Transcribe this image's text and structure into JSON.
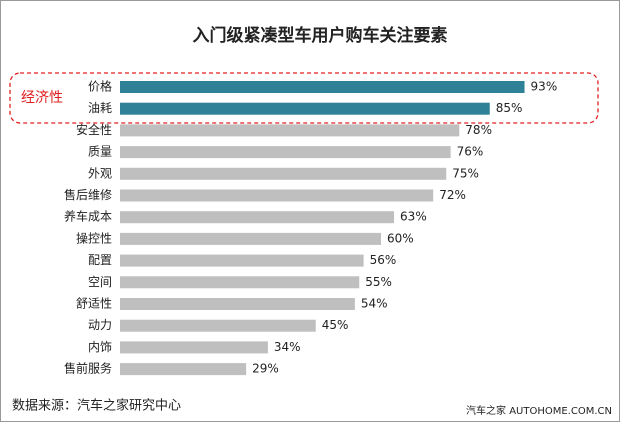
{
  "chart_data": {
    "type": "bar",
    "orientation": "horizontal",
    "title": "入门级紧凑型车用户购车关注要素",
    "categories": [
      "价格",
      "油耗",
      "安全性",
      "质量",
      "外观",
      "售后维修",
      "养车成本",
      "操控性",
      "配置",
      "空间",
      "舒适性",
      "动力",
      "内饰",
      "售前服务"
    ],
    "values": [
      93,
      85,
      78,
      76,
      75,
      72,
      63,
      60,
      56,
      55,
      54,
      45,
      34,
      29
    ],
    "value_labels": [
      "93%",
      "85%",
      "78%",
      "76%",
      "75%",
      "72%",
      "63%",
      "60%",
      "56%",
      "55%",
      "54%",
      "45%",
      "34%",
      "29%"
    ],
    "colors": [
      "#2e8196",
      "#2e8196",
      "#bfbfbf",
      "#bfbfbf",
      "#bfbfbf",
      "#bfbfbf",
      "#bfbfbf",
      "#bfbfbf",
      "#bfbfbf",
      "#bfbfbf",
      "#bfbfbf",
      "#bfbfbf",
      "#bfbfbf",
      "#bfbfbf"
    ],
    "annotation": "经济性",
    "source": "数据来源：汽车之家研究中心",
    "watermark": "汽车之家 AUTOHOME.COM.CN"
  }
}
